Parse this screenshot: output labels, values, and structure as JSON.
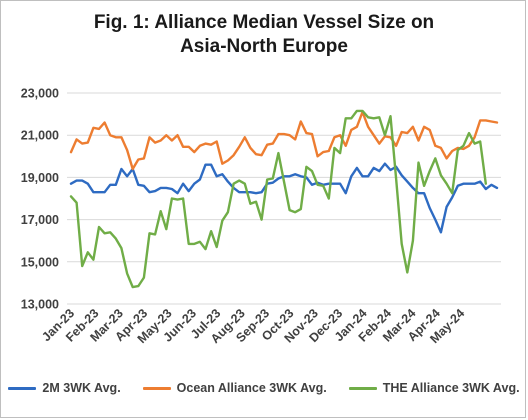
{
  "chart_data": {
    "type": "line",
    "title_line1": "Fig. 1: Alliance Median Vessel Size on",
    "title_line2": "Asia-North Europe",
    "xlabel": "",
    "ylabel": "",
    "ylim": [
      13000,
      23000
    ],
    "y_ticks": [
      "13,000",
      "15,000",
      "17,000",
      "19,000",
      "21,000",
      "23,000"
    ],
    "y_tick_values": [
      13000,
      15000,
      17000,
      19000,
      21000,
      23000
    ],
    "x_tick_labels": [
      "Jan-23",
      "Feb-23",
      "Mar-23",
      "Apr-23",
      "May-23",
      "Jun-23",
      "Jul-23",
      "Aug-23",
      "Sep-23",
      "Oct-23",
      "Nov-23",
      "Dec-23",
      "Jan-24",
      "Feb-24",
      "Mar-24",
      "Apr-24",
      "May-24"
    ],
    "weeks_per_tick": 4.35,
    "grid": true,
    "legend_position": "bottom",
    "series": [
      {
        "name": "2M 3WK Avg.",
        "color": "#2e6bc2",
        "values": [
          18700,
          18850,
          18850,
          18700,
          18300,
          18300,
          18300,
          18650,
          18650,
          19400,
          19050,
          19400,
          18650,
          18600,
          18300,
          18350,
          18500,
          18500,
          18450,
          18250,
          18700,
          18350,
          18700,
          18900,
          19600,
          19600,
          19050,
          19150,
          18800,
          18500,
          18300,
          18300,
          18300,
          18250,
          18300,
          18700,
          18750,
          18950,
          19050,
          19050,
          19150,
          19050,
          19000,
          18650,
          18750,
          18650,
          18700,
          18700,
          18700,
          18250,
          19050,
          19450,
          19050,
          19050,
          19450,
          19300,
          19650,
          19350,
          19500,
          19100,
          18800,
          18500,
          18250,
          18250,
          17550,
          17000,
          16400,
          17600,
          18050,
          18600,
          18700,
          18700,
          18700,
          18800,
          18450,
          18650,
          18500
        ]
      },
      {
        "name": "Ocean Alliance 3WK Avg.",
        "color": "#ed7d31",
        "values": [
          20200,
          20800,
          20600,
          20650,
          21350,
          21300,
          21600,
          21000,
          20900,
          20900,
          20300,
          19400,
          19850,
          19900,
          20900,
          20650,
          20750,
          21000,
          20750,
          21000,
          20450,
          20450,
          20200,
          20500,
          20600,
          20550,
          20700,
          19650,
          19800,
          20050,
          20450,
          20900,
          20400,
          20100,
          20050,
          20550,
          20600,
          21050,
          21050,
          21000,
          20800,
          21650,
          21100,
          21050,
          20000,
          20200,
          20250,
          20900,
          21000,
          20500,
          21250,
          21400,
          22100,
          21400,
          21000,
          20600,
          20950,
          20900,
          20500,
          21150,
          21100,
          21400,
          20750,
          21400,
          21250,
          20500,
          20400,
          19900,
          20250,
          20400,
          20350,
          20500,
          20900,
          21700,
          21700,
          21650,
          21600
        ]
      },
      {
        "name": "THE Alliance 3WK Avg.",
        "color": "#70ad47",
        "values": [
          18100,
          17800,
          14800,
          15450,
          15100,
          16650,
          16350,
          16400,
          16100,
          15650,
          14450,
          13800,
          13850,
          14250,
          16350,
          16300,
          17400,
          16550,
          18000,
          17950,
          18000,
          15850,
          15850,
          15950,
          15600,
          16450,
          15700,
          16950,
          17350,
          18700,
          18850,
          18700,
          17750,
          17850,
          17000,
          18900,
          18950,
          20150,
          18800,
          17450,
          17350,
          17500,
          19500,
          19300,
          18650,
          18600,
          18000,
          20400,
          20150,
          21800,
          21800,
          22150,
          22150,
          21850,
          21800,
          21850,
          21000,
          21900,
          18950,
          15850,
          14500,
          16000,
          19700,
          18600,
          19300,
          19900,
          19100,
          18700,
          18250,
          20300,
          20500,
          21100,
          20600,
          20700,
          18700
        ]
      }
    ]
  }
}
